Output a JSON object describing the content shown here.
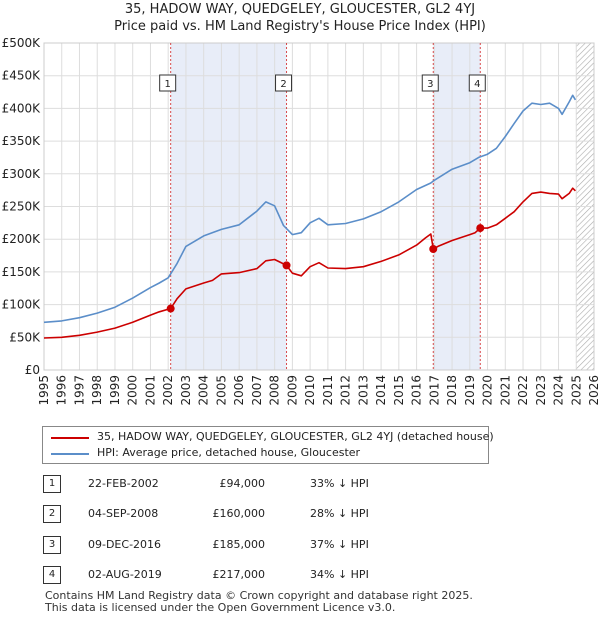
{
  "title_line1": "35, HADOW WAY, QUEDGELEY, GLOUCESTER, GL2 4YJ",
  "title_line2": "Price paid vs. HM Land Registry's House Price Index (HPI)",
  "colors": {
    "price": "#cc0000",
    "hpi": "#5b8ec9",
    "shade": "#e8edf8",
    "grid": "#dddddd",
    "marker_line": "#cc0000"
  },
  "chart_data": {
    "type": "line",
    "x_ticks": [
      "1995",
      "1996",
      "1997",
      "1998",
      "1999",
      "2000",
      "2001",
      "2002",
      "2003",
      "2004",
      "2005",
      "2006",
      "2007",
      "2008",
      "2009",
      "2010",
      "2011",
      "2012",
      "2013",
      "2014",
      "2015",
      "2016",
      "2017",
      "2018",
      "2019",
      "2020",
      "2021",
      "2022",
      "2023",
      "2024",
      "2025",
      "2026"
    ],
    "y_ticks": [
      "£0",
      "£50K",
      "£100K",
      "£150K",
      "£200K",
      "£250K",
      "£300K",
      "£350K",
      "£400K",
      "£450K",
      "£500K"
    ],
    "xlim": [
      1995,
      2026
    ],
    "ylim": [
      0,
      500000
    ],
    "series": [
      {
        "name": "35, HADOW WAY, QUEDGELEY, GLOUCESTER, GL2 4YJ (detached house)",
        "x": [
          1995,
          1996,
          1997,
          1998,
          1999,
          2000,
          2001,
          2001.5,
          2002.14,
          2002.5,
          2003,
          2004,
          2004.5,
          2005,
          2006,
          2007,
          2007.5,
          2008,
          2008.3,
          2008.67,
          2009,
          2009.5,
          2010,
          2010.5,
          2011,
          2012,
          2013,
          2014,
          2015,
          2016,
          2016.5,
          2016.8,
          2016.94,
          2017.2,
          2018,
          2019,
          2019.3,
          2019.59,
          2020,
          2020.5,
          2021,
          2021.5,
          2022,
          2022.5,
          2023,
          2023.5,
          2024,
          2024.2,
          2024.6,
          2024.8,
          2024.95
        ],
        "values": [
          49000,
          50000,
          53000,
          58000,
          64000,
          73000,
          84000,
          89000,
          94000,
          109000,
          124000,
          133000,
          137000,
          147000,
          149000,
          155000,
          167000,
          169000,
          165000,
          160000,
          148000,
          144000,
          158000,
          164000,
          156000,
          155000,
          158000,
          166000,
          176000,
          191000,
          202000,
          208000,
          185000,
          189000,
          198000,
          207000,
          210000,
          217000,
          217000,
          222000,
          232000,
          242000,
          257000,
          270000,
          272000,
          270000,
          269000,
          262000,
          270000,
          278000,
          274000
        ]
      },
      {
        "name": "HPI: Average price, detached house, Gloucester",
        "x": [
          1995,
          1996,
          1997,
          1998,
          1999,
          2000,
          2001,
          2001.5,
          2002,
          2002.5,
          2003,
          2004,
          2005,
          2006,
          2007,
          2007.5,
          2008,
          2008.5,
          2009,
          2009.5,
          2010,
          2010.5,
          2011,
          2012,
          2013,
          2014,
          2015,
          2016,
          2016.8,
          2017,
          2018,
          2019,
          2019.5,
          2020,
          2020.5,
          2021,
          2021.5,
          2022,
          2022.5,
          2023,
          2023.5,
          2024,
          2024.2,
          2024.6,
          2024.8,
          2024.95
        ],
        "values": [
          73000,
          75000,
          80000,
          87000,
          96000,
          110000,
          126000,
          133000,
          141000,
          163000,
          189000,
          205000,
          215000,
          222000,
          243000,
          257000,
          251000,
          221000,
          207000,
          210000,
          225000,
          232000,
          222000,
          224000,
          231000,
          242000,
          257000,
          276000,
          286000,
          290000,
          307000,
          317000,
          325000,
          330000,
          339000,
          357000,
          377000,
          396000,
          408000,
          406000,
          408000,
          400000,
          391000,
          410000,
          420000,
          413000
        ]
      }
    ],
    "transactions": [
      {
        "id": "1",
        "date": "22-FEB-2002",
        "x": 2002.14,
        "price_value": 94000,
        "price": "£94,000",
        "hpi_diff": "33% ↓ HPI"
      },
      {
        "id": "2",
        "date": "04-SEP-2008",
        "x": 2008.67,
        "price_value": 160000,
        "price": "£160,000",
        "hpi_diff": "28% ↓ HPI"
      },
      {
        "id": "3",
        "date": "09-DEC-2016",
        "x": 2016.94,
        "price_value": 185000,
        "price": "£185,000",
        "hpi_diff": "37% ↓ HPI"
      },
      {
        "id": "4",
        "date": "02-AUG-2019",
        "x": 2019.59,
        "price_value": 217000,
        "price": "£217,000",
        "hpi_diff": "34% ↓ HPI"
      }
    ],
    "shaded_ranges": [
      [
        2002.14,
        2008.67
      ],
      [
        2016.94,
        2019.59
      ]
    ],
    "hatch_from": 2025.0
  },
  "legend": {
    "price_label": "35, HADOW WAY, QUEDGELEY, GLOUCESTER, GL2 4YJ (detached house)",
    "hpi_label": "HPI: Average price, detached house, Gloucester"
  },
  "footer": {
    "line1": "Contains HM Land Registry data © Crown copyright and database right 2025.",
    "line2": "This data is licensed under the Open Government Licence v3.0."
  }
}
